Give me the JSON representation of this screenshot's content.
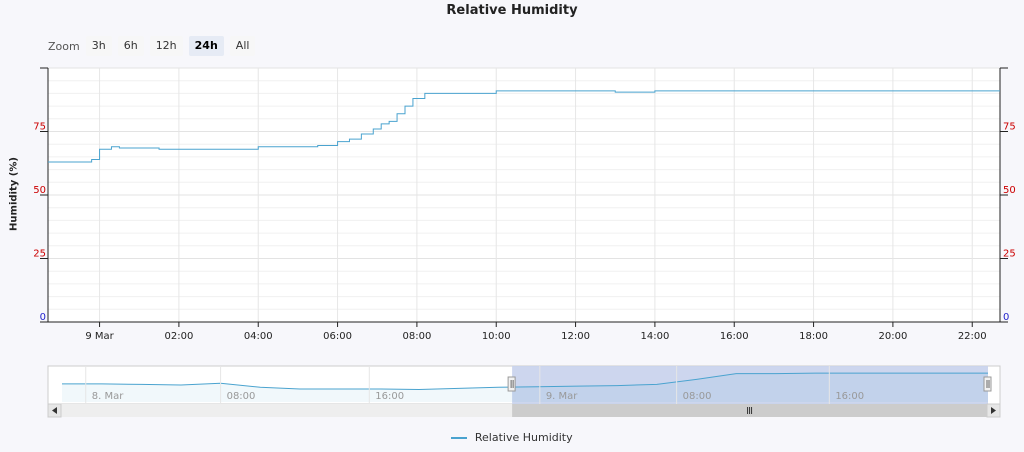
{
  "chart_data": {
    "type": "line",
    "title": "Relative Humidity",
    "ylabel": "Humidity (%)",
    "ylim": [
      0,
      100
    ],
    "yticks_left": [
      "75",
      "50",
      "25",
      "0"
    ],
    "yticks_right": [
      "75",
      "50",
      "25",
      "0"
    ],
    "xticks": [
      {
        "label": "9 Mar",
        "t": 0
      },
      {
        "label": "02:00",
        "t": 2
      },
      {
        "label": "04:00",
        "t": 4
      },
      {
        "label": "06:00",
        "t": 6
      },
      {
        "label": "08:00",
        "t": 8
      },
      {
        "label": "10:00",
        "t": 10
      },
      {
        "label": "12:00",
        "t": 12
      },
      {
        "label": "14:00",
        "t": 14
      },
      {
        "label": "16:00",
        "t": 16
      },
      {
        "label": "18:00",
        "t": 18
      },
      {
        "label": "20:00",
        "t": 20
      },
      {
        "label": "22:00",
        "t": 22
      }
    ],
    "xlim": [
      -1.3,
      22.7
    ],
    "series": [
      {
        "name": "Relative Humidity",
        "color": "#4aa3cf",
        "x": [
          -1.3,
          -0.8,
          -0.4,
          -0.2,
          0.0,
          0.3,
          0.5,
          1.0,
          1.5,
          2.0,
          3.0,
          4.0,
          5.0,
          5.5,
          6.0,
          6.3,
          6.6,
          6.9,
          7.1,
          7.3,
          7.5,
          7.7,
          7.9,
          8.2,
          8.6,
          9.0,
          9.5,
          10.0,
          11.0,
          12.0,
          13.0,
          14.0,
          15.0,
          16.0,
          18.0,
          20.0,
          22.0,
          22.7
        ],
        "y": [
          63,
          63,
          63,
          64,
          68,
          69,
          68.5,
          68.5,
          68,
          68,
          68,
          69,
          69,
          69.5,
          71,
          72,
          74,
          76,
          78,
          79,
          82,
          85,
          88,
          90,
          90,
          90,
          90,
          91,
          91,
          91,
          90.5,
          91,
          91,
          91,
          91,
          91,
          91,
          91
        ]
      }
    ],
    "grid": true,
    "legend": "bottom-center"
  },
  "zoom": {
    "label": "Zoom",
    "buttons": [
      "3h",
      "6h",
      "12h",
      "24h",
      "All"
    ],
    "active": "24h"
  },
  "navigator": {
    "labels": [
      "8. Mar",
      "08:00",
      "16:00",
      "9. Mar",
      "08:00",
      "16:00"
    ],
    "x": [
      -24,
      -22,
      -20,
      -18,
      -16,
      -14,
      -12,
      -10,
      -8,
      -6,
      -4,
      -2,
      0,
      2,
      4,
      6,
      8,
      10,
      12,
      14,
      16,
      18,
      20,
      22.7
    ],
    "y": [
      72,
      72,
      71,
      70,
      73,
      66,
      63,
      63,
      63,
      62,
      64,
      66,
      67,
      68,
      69,
      71,
      80,
      90,
      90,
      91,
      91,
      91,
      91,
      91
    ],
    "selection": [
      -1.3,
      22.7
    ]
  }
}
